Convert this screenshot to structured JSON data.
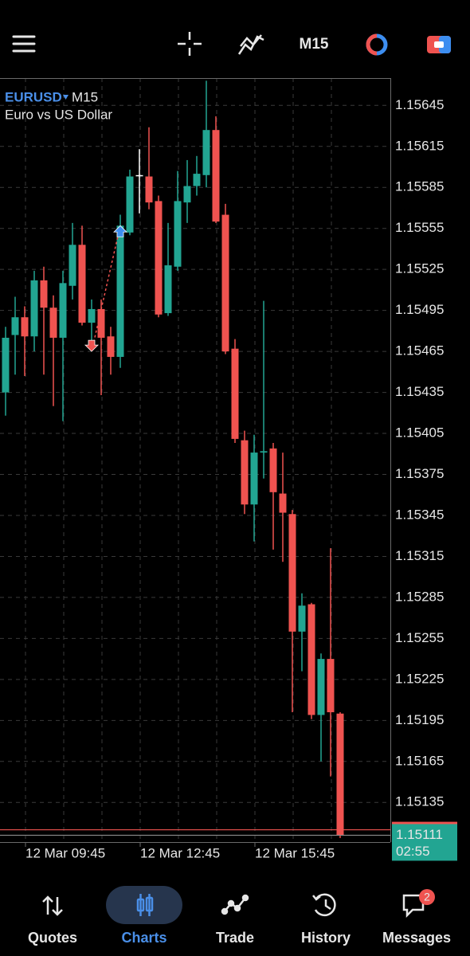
{
  "header": {
    "timeframe": "M15"
  },
  "chart_data": {
    "type": "candlestick",
    "symbol": "EURUSD",
    "timeframe": "M15",
    "description": "Euro vs US Dollar",
    "categories": [
      null,
      null,
      "12 Mar 09:45",
      null,
      null,
      null,
      null,
      null,
      null,
      null,
      null,
      null,
      null,
      null,
      "12 Mar 12:45",
      null,
      null,
      null,
      null,
      null,
      null,
      null,
      null,
      null,
      null,
      null,
      "12 Mar 15:45",
      null,
      null,
      null,
      null,
      null,
      null,
      null,
      null,
      null
    ],
    "open": [
      1.15435,
      1.15477,
      1.1549,
      1.15476,
      1.15517,
      1.15497,
      1.15475,
      1.15513,
      1.15543,
      1.15486,
      1.15496,
      1.15476,
      1.15461,
      1.15552,
      1.15594,
      1.15593,
      1.15575,
      1.15493,
      1.15527,
      1.15574,
      1.15586,
      1.15594,
      1.15627,
      1.15565,
      1.15467,
      1.154,
      1.15353,
      1.15391,
      1.15394,
      1.15361,
      1.15346,
      1.1526,
      1.1528,
      1.15199,
      1.1524,
      1.152
    ],
    "high": [
      1.15483,
      1.15505,
      1.15498,
      1.15524,
      1.15527,
      1.15506,
      1.15524,
      1.15559,
      1.15557,
      1.15503,
      1.15503,
      1.15483,
      1.15565,
      1.15598,
      1.15613,
      1.15629,
      1.15579,
      1.15559,
      1.15597,
      1.15605,
      1.15608,
      1.15663,
      1.15637,
      1.15573,
      1.15474,
      1.15407,
      1.15404,
      1.15502,
      1.15398,
      1.15391,
      1.15349,
      1.15288,
      1.15281,
      1.15244,
      1.15321,
      1.15201
    ],
    "low": [
      1.15418,
      1.15448,
      1.15447,
      1.15465,
      1.15448,
      1.15425,
      1.15414,
      1.15503,
      1.15484,
      1.15471,
      1.15433,
      1.15448,
      1.15453,
      1.1555,
      1.15566,
      1.15569,
      1.1549,
      1.15491,
      1.15524,
      1.15559,
      1.15579,
      1.15585,
      1.15559,
      1.15463,
      1.15398,
      1.15346,
      1.15326,
      1.15372,
      1.1532,
      1.15311,
      1.15201,
      1.15231,
      1.15196,
      1.15165,
      1.15154,
      1.15109
    ],
    "close": [
      1.15475,
      1.1549,
      1.15476,
      1.15517,
      1.15497,
      1.15475,
      1.15515,
      1.15543,
      1.15486,
      1.15496,
      1.15475,
      1.15461,
      1.15557,
      1.15593,
      1.15594,
      1.15574,
      1.15492,
      1.15528,
      1.15575,
      1.15586,
      1.15595,
      1.15627,
      1.1556,
      1.15465,
      1.15401,
      1.15353,
      1.15391,
      1.15392,
      1.15362,
      1.15347,
      1.1526,
      1.15279,
      1.15199,
      1.1524,
      1.15201,
      1.15111
    ],
    "up_color": "#22a592",
    "down_color": "#ef5350",
    "doji_color": "#ffffff",
    "ylim": [
      1.15106,
      1.15665
    ],
    "yticks": [
      1.15645,
      1.15615,
      1.15585,
      1.15555,
      1.15525,
      1.15495,
      1.15465,
      1.15435,
      1.15405,
      1.15375,
      1.15345,
      1.15315,
      1.15285,
      1.15255,
      1.15225,
      1.15195,
      1.15165,
      1.15135
    ],
    "grid": true,
    "arrows": [
      {
        "at": 9,
        "price": 1.15465,
        "direction": "down",
        "color": "#ef5350"
      },
      {
        "at": 12,
        "price": 1.15557,
        "direction": "up",
        "color": "#3d8ef0"
      }
    ],
    "ask": 1.15115,
    "bid": 1.15111,
    "countdown": "02:55"
  },
  "nav": [
    {
      "label": "Quotes"
    },
    {
      "label": "Charts"
    },
    {
      "label": "Trade"
    },
    {
      "label": "History"
    },
    {
      "label": "Messages",
      "badge": "2"
    }
  ]
}
